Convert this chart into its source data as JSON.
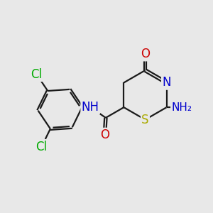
{
  "background_color": "#e8e8e8",
  "atom_colors": {
    "C": "#1a1a1a",
    "N": "#0000cc",
    "O": "#cc0000",
    "S": "#aaaa00",
    "Cl": "#00aa00",
    "H": "#708090"
  },
  "figsize": [
    3.0,
    3.0
  ],
  "dpi": 100,
  "lw": 1.6,
  "fs": 11.5
}
